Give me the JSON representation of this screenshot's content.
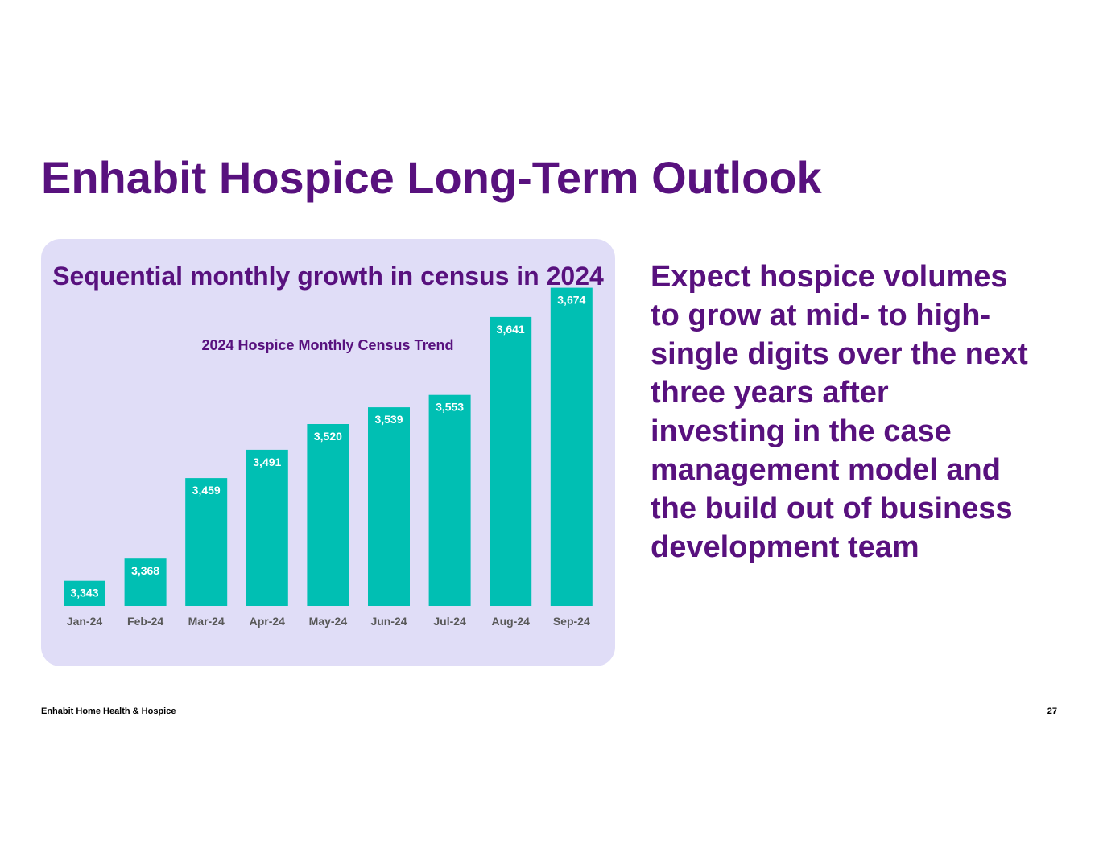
{
  "slide": {
    "title": "Enhabit Hospice Long-Term Outlook",
    "panel_heading": "Sequential monthly growth in census in 2024",
    "side_text": "Expect hospice volumes to grow at mid- to high-single digits over the next three years after investing in the case management model and the build out of business development team"
  },
  "footer": {
    "company": "Enhabit Home Health & Hospice",
    "page_number": "27"
  },
  "colors": {
    "brand_purple": "#58117e",
    "panel_background": "#e0ddf7",
    "bar_teal": "#00bfb3",
    "axis_label_gray": "#595959"
  },
  "chart_data": {
    "type": "bar",
    "title": "2024 Hospice Monthly Census Trend",
    "categories": [
      "Jan-24",
      "Feb-24",
      "Mar-24",
      "Apr-24",
      "May-24",
      "Jun-24",
      "Jul-24",
      "Aug-24",
      "Sep-24"
    ],
    "values": [
      3343,
      3368,
      3459,
      3491,
      3520,
      3539,
      3553,
      3641,
      3674
    ],
    "value_labels": [
      "3,343",
      "3,368",
      "3,459",
      "3,491",
      "3,520",
      "3,539",
      "3,553",
      "3,641",
      "3,674"
    ],
    "xlabel": "",
    "ylabel": "",
    "ylim": [
      3300,
      3700
    ],
    "grid": false,
    "legend": "none"
  }
}
